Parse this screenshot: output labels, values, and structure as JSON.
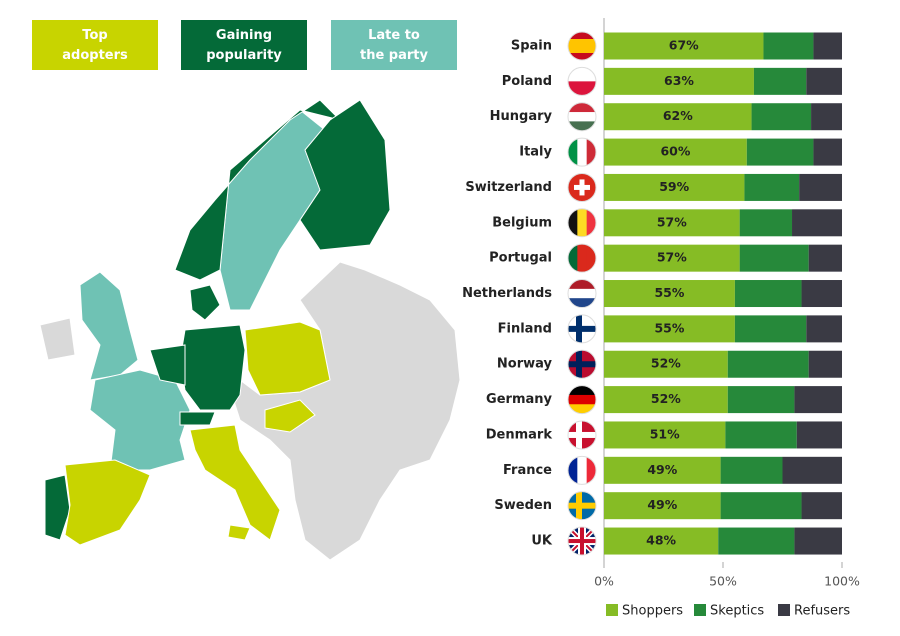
{
  "map_legend": [
    {
      "label": "Top adopters",
      "color": "#c8d400"
    },
    {
      "label": "Gaining popularity",
      "color": "#046a38"
    },
    {
      "label": "Late to the party",
      "color": "#6fc2b4"
    }
  ],
  "chart_data": {
    "type": "stacked_bar_horizontal",
    "categories": [
      "Spain",
      "Poland",
      "Hungary",
      "Italy",
      "Switzerland",
      "Belgium",
      "Portugal",
      "Netherlands",
      "Finland",
      "Norway",
      "Germany",
      "Denmark",
      "France",
      "Sweden",
      "UK"
    ],
    "series": [
      {
        "name": "Shoppers",
        "color": "#86bc25",
        "values": [
          67,
          63,
          62,
          60,
          59,
          57,
          57,
          55,
          55,
          52,
          52,
          51,
          49,
          49,
          48
        ],
        "value_labels": [
          "67%",
          "63%",
          "62%",
          "60%",
          "59%",
          "57%",
          "57%",
          "55%",
          "55%",
          "52%",
          "52%",
          "51%",
          "49%",
          "49%",
          "48%"
        ]
      },
      {
        "name": "Skeptics",
        "color": "#26893a",
        "values": [
          21,
          22,
          25,
          28,
          23,
          22,
          29,
          28,
          30,
          34,
          28,
          30,
          26,
          34,
          32
        ]
      },
      {
        "name": "Refusers",
        "color": "#3a3a44",
        "values": [
          12,
          15,
          13,
          12,
          18,
          21,
          14,
          17,
          15,
          14,
          20,
          19,
          25,
          17,
          20
        ]
      }
    ],
    "xlim": [
      0,
      100
    ],
    "xticks": [
      {
        "value": 0,
        "label": "0%"
      },
      {
        "value": 50,
        "label": "50%"
      },
      {
        "value": 100,
        "label": "100%"
      }
    ]
  }
}
